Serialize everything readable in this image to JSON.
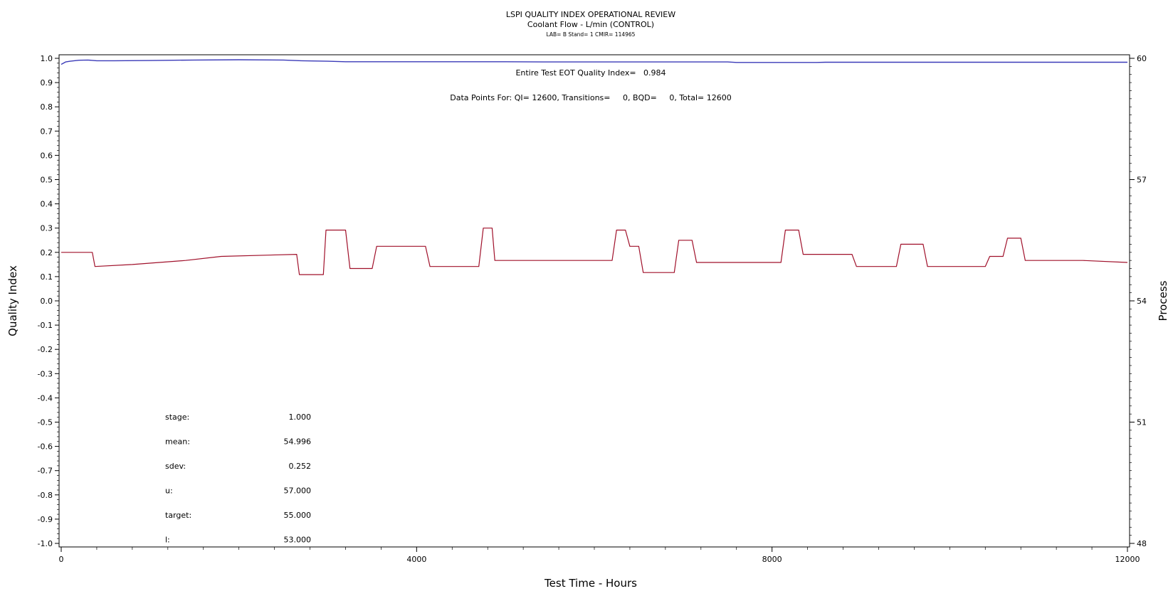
{
  "chart_data": {
    "type": "line",
    "title": "LSPI QUALITY INDEX OPERATIONAL REVIEW",
    "subtitle": "Coolant Flow - L/min (CONTROL)",
    "subtitle2": "LAB= B Stand= 1 CMIR= 114965",
    "xlabel": "Test Time - Hours",
    "ylabel": "Quality Index",
    "y2label": "Process",
    "xlim": [
      0,
      12000
    ],
    "ylim": [
      -1.0,
      1.0
    ],
    "y2lim": [
      48,
      60
    ],
    "x_ticks": [
      0,
      4000,
      8000,
      12000
    ],
    "y_ticks": [
      -1.0,
      -0.9,
      -0.8,
      -0.7,
      -0.6,
      -0.5,
      -0.4,
      -0.3,
      -0.2,
      -0.1,
      0.0,
      0.1,
      0.2,
      0.3,
      0.4,
      0.5,
      0.6,
      0.7,
      0.8,
      0.9,
      1.0
    ],
    "y2_ticks": [
      48,
      51,
      54,
      57,
      60
    ],
    "x_tick_labels": [
      "0",
      "4000",
      "8000",
      "12000"
    ],
    "y_tick_labels": [
      "-1.0",
      "-0.9",
      "-0.8",
      "-0.7",
      "-0.6",
      "-0.5",
      "-0.4",
      "-0.3",
      "-0.2",
      "-0.1",
      "0.0",
      "0.1",
      "0.2",
      "0.3",
      "0.4",
      "0.5",
      "0.6",
      "0.7",
      "0.8",
      "0.9",
      "1.0"
    ],
    "y2_tick_labels": [
      "48",
      "51",
      "54",
      "57",
      "60"
    ],
    "grid": false,
    "annotations": {
      "eot_quality_index": "Entire Test EOT Quality Index=   0.984",
      "data_points": "Data Points For: QI= 12600, Transitions=     0, BQD=     0, Total= 12600"
    },
    "stats": [
      {
        "label": "stage:",
        "value": "1.000"
      },
      {
        "label": "mean:",
        "value": "54.996"
      },
      {
        "label": "sdev:",
        "value": "0.252"
      },
      {
        "label": "u:",
        "value": "57.000"
      },
      {
        "label": "target:",
        "value": "55.000"
      },
      {
        "label": "l:",
        "value": "53.000"
      }
    ],
    "series": [
      {
        "axis": "left",
        "color": "#3a3ab8",
        "x": [
          0,
          50,
          100,
          200,
          300,
          400,
          600,
          1000,
          1500,
          2000,
          2500,
          2700,
          3000,
          3200,
          3600,
          4000,
          4500,
          5000,
          5500,
          6000,
          6500,
          7000,
          7500,
          7600,
          8000,
          8500,
          8600,
          9000,
          10000,
          11000,
          12000
        ],
        "values": [
          0.975,
          0.985,
          0.988,
          0.992,
          0.993,
          0.99,
          0.99,
          0.991,
          0.993,
          0.994,
          0.993,
          0.99,
          0.988,
          0.986,
          0.986,
          0.986,
          0.986,
          0.986,
          0.985,
          0.985,
          0.985,
          0.985,
          0.985,
          0.983,
          0.983,
          0.983,
          0.984,
          0.984,
          0.984,
          0.984,
          0.984
        ]
      },
      {
        "axis": "right",
        "color": "#a0102a",
        "x": [
          0,
          350,
          380,
          800,
          1400,
          1800,
          2650,
          2680,
          2950,
          2980,
          3200,
          3250,
          3500,
          3550,
          4100,
          4150,
          4700,
          4750,
          4850,
          4880,
          6200,
          6250,
          6350,
          6400,
          6500,
          6550,
          6900,
          6950,
          7100,
          7150,
          8100,
          8150,
          8300,
          8350,
          8900,
          8950,
          9400,
          9450,
          9700,
          9750,
          10400,
          10450,
          10600,
          10650,
          10800,
          10850,
          11500,
          12000
        ],
        "values": [
          55.2,
          55.2,
          54.85,
          54.9,
          55.0,
          55.1,
          55.15,
          54.65,
          54.65,
          55.75,
          55.75,
          54.8,
          54.8,
          55.35,
          55.35,
          54.85,
          54.85,
          55.8,
          55.8,
          55.0,
          55.0,
          55.75,
          55.75,
          55.35,
          55.35,
          54.7,
          54.7,
          55.5,
          55.5,
          54.95,
          54.95,
          55.75,
          55.75,
          55.15,
          55.15,
          54.85,
          54.85,
          55.4,
          55.4,
          54.85,
          54.85,
          55.1,
          55.1,
          55.55,
          55.55,
          55.0,
          55.0,
          54.95
        ]
      }
    ]
  }
}
